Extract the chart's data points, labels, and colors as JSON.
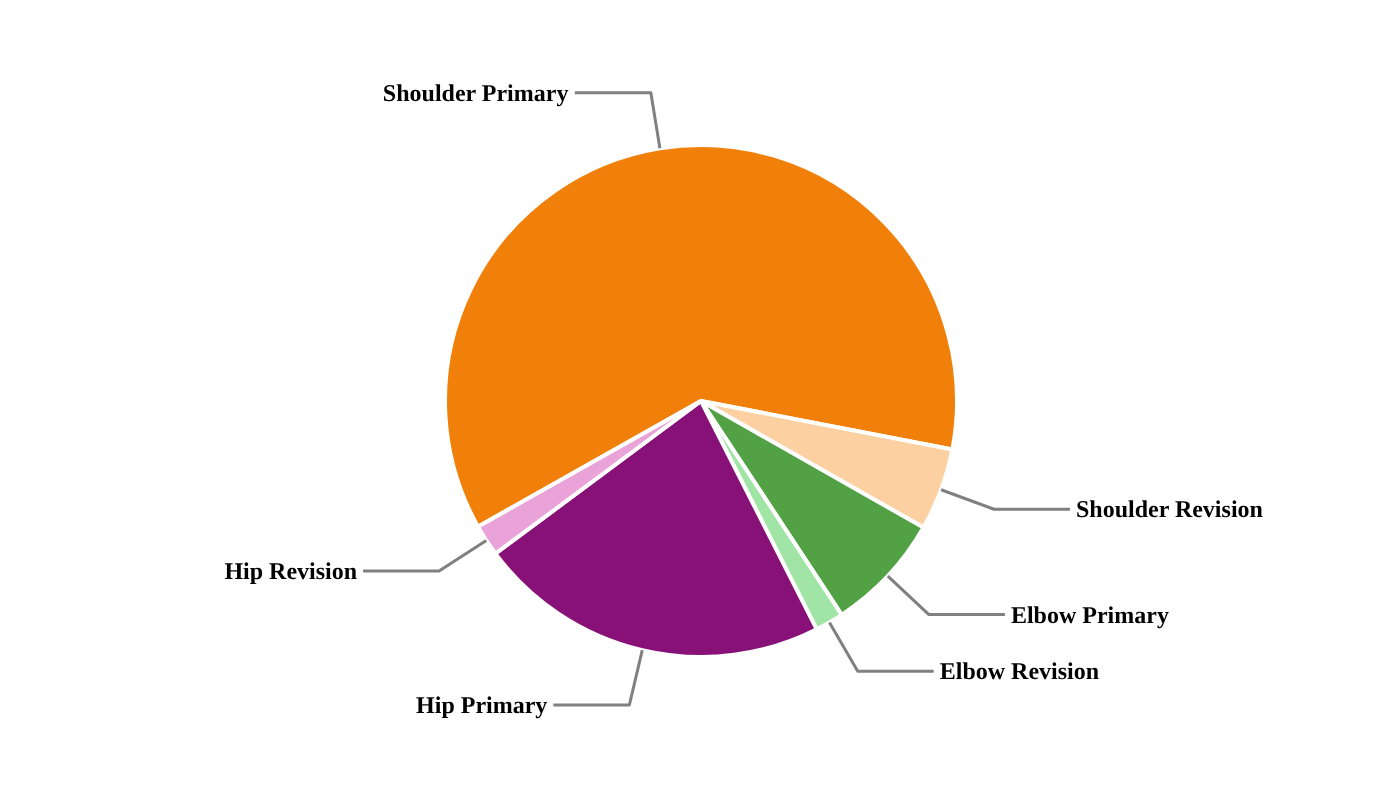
{
  "chart_data": {
    "type": "pie",
    "categories": [
      "Shoulder Primary",
      "Shoulder Revision",
      "Elbow Primary",
      "Elbow Revision",
      "Hip Primary",
      "Hip Revision"
    ],
    "values": [
      61.2,
      5.2,
      7.5,
      1.8,
      22.3,
      2.0
    ],
    "colors": [
      "#f0800a",
      "#fdd0a2",
      "#52a245",
      "#a1e5a6",
      "#881177",
      "#e9a3d9"
    ],
    "legend": false
  }
}
